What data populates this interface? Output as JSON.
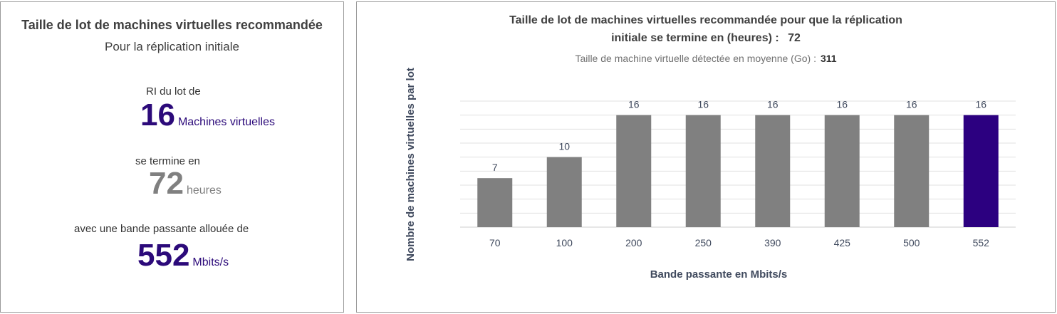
{
  "summary": {
    "title": "Taille de lot de machines virtuelles recommandée",
    "subtitle": "Pour la réplication initiale",
    "batch_label": "RI du lot de",
    "batch_value": "16",
    "batch_unit": "Machines virtuelles",
    "finish_label": "se termine en",
    "finish_value": "72",
    "finish_unit": "heures",
    "bandwidth_label": "avec une bande passante allouée de",
    "bandwidth_value": "552",
    "bandwidth_unit": "Mbits/s"
  },
  "chart_header": {
    "title_line1": "Taille de lot de machines virtuelles recommandée pour que la réplication",
    "title_line2": "initiale se termine en (heures) :",
    "title_value": "72",
    "subtitle": "Taille de machine virtuelle détectée en moyenne (Go) :",
    "subtitle_value": "311"
  },
  "colors": {
    "accent": "#2c0a7a",
    "bar": "#808080",
    "highlight_bar": "#2c0080",
    "grid": "#e0e0e0"
  },
  "chart_data": {
    "type": "bar",
    "categories": [
      "70",
      "100",
      "200",
      "250",
      "390",
      "425",
      "500",
      "552"
    ],
    "values": [
      7,
      10,
      16,
      16,
      16,
      16,
      16,
      16
    ],
    "highlight_index": 7,
    "xlabel": "Bande passante en Mbits/s",
    "ylabel": "Nombre de machines virtuelles par lot",
    "ylim": [
      0,
      18
    ],
    "grid": true,
    "legend": "none"
  }
}
